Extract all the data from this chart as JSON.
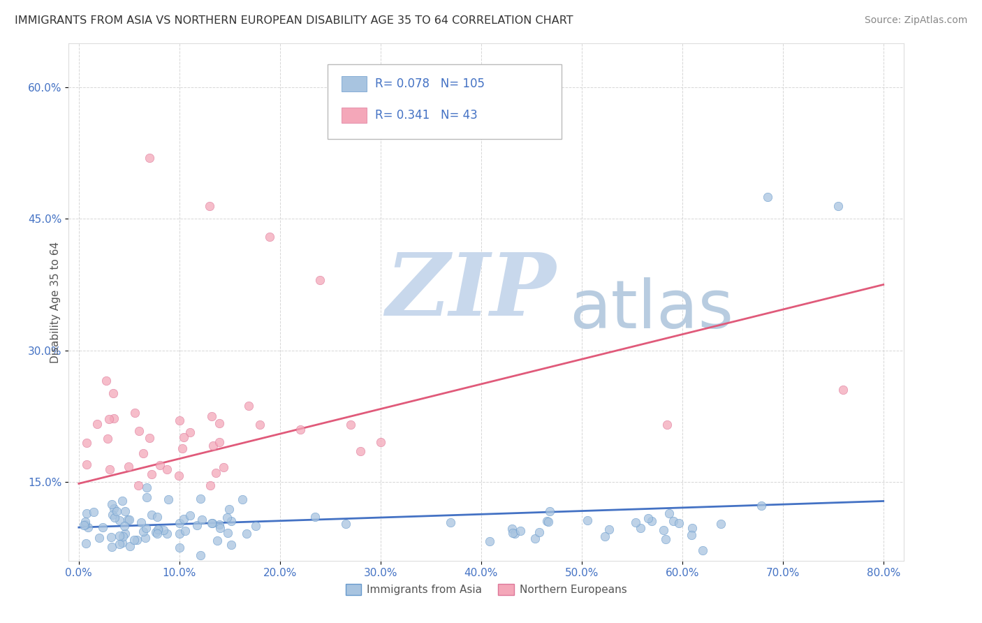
{
  "title": "IMMIGRANTS FROM ASIA VS NORTHERN EUROPEAN DISABILITY AGE 35 TO 64 CORRELATION CHART",
  "source": "Source: ZipAtlas.com",
  "xlabel_ticks": [
    "0.0%",
    "10.0%",
    "20.0%",
    "30.0%",
    "40.0%",
    "50.0%",
    "60.0%",
    "70.0%",
    "80.0%"
  ],
  "ylabel_ticks": [
    "15.0%",
    "30.0%",
    "45.0%",
    "60.0%"
  ],
  "xlabel_vals": [
    0.0,
    0.1,
    0.2,
    0.3,
    0.4,
    0.5,
    0.6,
    0.7,
    0.8
  ],
  "ylabel_vals": [
    0.15,
    0.3,
    0.45,
    0.6
  ],
  "ylabel": "Disability Age 35 to 64",
  "legend_labels": [
    "Immigrants from Asia",
    "Northern Europeans"
  ],
  "r_asia": 0.078,
  "n_asia": 105,
  "r_northern": 0.341,
  "n_northern": 43,
  "color_asia": "#a8c4e0",
  "color_northern": "#f4a7b9",
  "line_color_asia": "#4472c4",
  "line_color_northern": "#e05a7a",
  "watermark_zip": "ZIP",
  "watermark_atlas": "atlas",
  "watermark_color_zip": "#c8d8ec",
  "watermark_color_atlas": "#b8cce0",
  "background_color": "#ffffff",
  "xlim": [
    -0.01,
    0.82
  ],
  "ylim": [
    0.06,
    0.65
  ],
  "asia_line_y_start": 0.098,
  "asia_line_y_end": 0.128,
  "northern_line_y_start": 0.148,
  "northern_line_y_end": 0.375
}
